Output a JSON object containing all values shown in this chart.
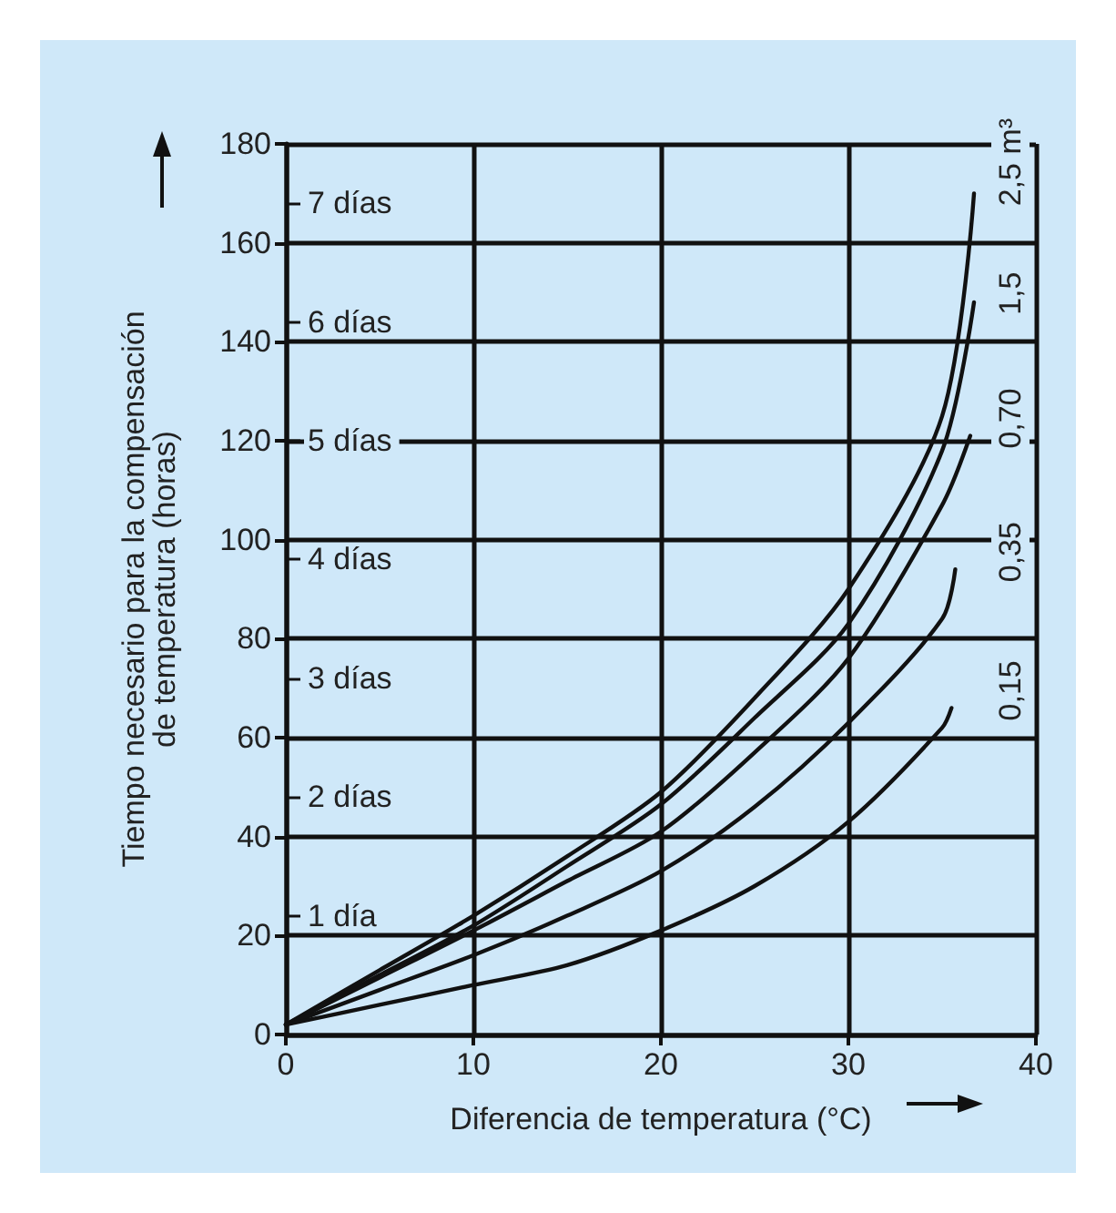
{
  "chart_data": {
    "type": "line",
    "xlabel": "Diferencia de temperatura (°C)",
    "ylabel": "Tiempo necesario para la compensación\nde temperatura (horas)",
    "xlim": [
      0,
      40
    ],
    "xticks": [
      0,
      10,
      20,
      30,
      40
    ],
    "ylim": [
      0,
      180
    ],
    "yticks": [
      0,
      20,
      40,
      60,
      80,
      100,
      120,
      140,
      160,
      180
    ],
    "grid": true,
    "legend": false,
    "marker": "none",
    "line_style": "solid",
    "series": [
      {
        "name": "2,5 m³",
        "color": "#111111",
        "x": [
          0,
          5,
          10,
          15,
          20,
          25,
          30,
          35,
          36.7
        ],
        "values": [
          2,
          13,
          24,
          36,
          49,
          68,
          90,
          125,
          170
        ]
      },
      {
        "name": "1,5",
        "color": "#111111",
        "x": [
          0,
          5,
          10,
          15,
          20,
          25,
          30,
          35,
          36.7
        ],
        "values": [
          2,
          12,
          22,
          34,
          46.5,
          64,
          83,
          118,
          148
        ]
      },
      {
        "name": "0,70",
        "color": "#111111",
        "x": [
          0,
          5,
          10,
          15,
          20,
          25,
          30,
          35,
          36.5
        ],
        "values": [
          2,
          11.5,
          21,
          31,
          41,
          57,
          76,
          107,
          121
        ]
      },
      {
        "name": "0,35",
        "color": "#111111",
        "x": [
          0,
          5,
          10,
          15,
          20,
          25,
          30,
          35,
          35.7
        ],
        "values": [
          2,
          9,
          16,
          24,
          33,
          46,
          63,
          84,
          94
        ]
      },
      {
        "name": "0,15",
        "color": "#111111",
        "x": [
          0,
          5,
          10,
          15,
          20,
          25,
          30,
          35,
          35.5
        ],
        "values": [
          2,
          6,
          10,
          14,
          21,
          30,
          43,
          62,
          66
        ]
      }
    ],
    "y2lim": [
      0,
      7.5
    ],
    "y2ticks": [
      {
        "value": 1,
        "label": "1 día"
      },
      {
        "value": 2,
        "label": "2 días"
      },
      {
        "value": 3,
        "label": "3 días"
      },
      {
        "value": 4,
        "label": "4 días"
      },
      {
        "value": 5,
        "label": "5 días"
      },
      {
        "value": 6,
        "label": "6 días"
      },
      {
        "value": 7,
        "label": "7 días"
      }
    ]
  }
}
